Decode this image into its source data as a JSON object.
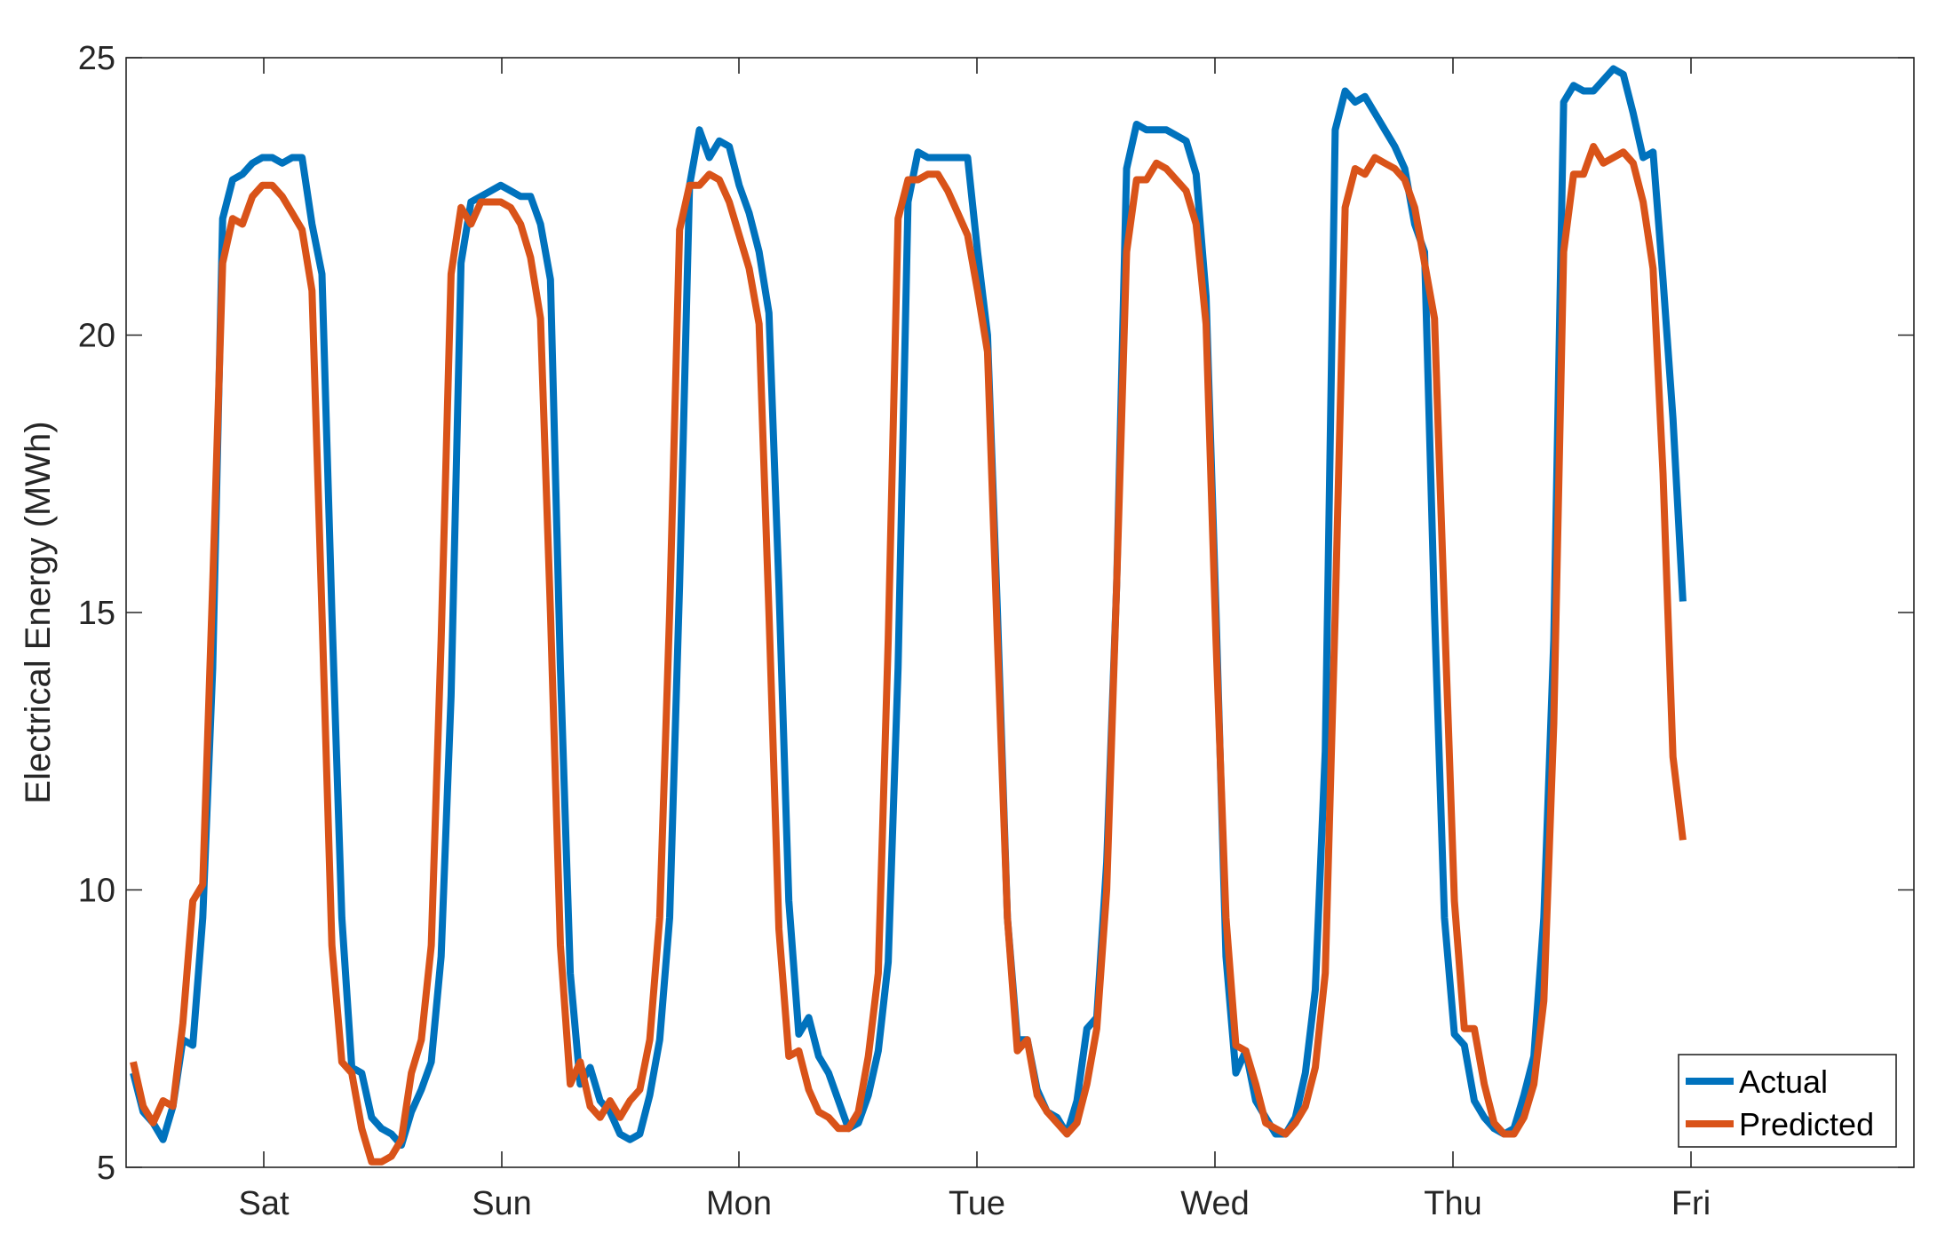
{
  "chart_data": {
    "type": "line",
    "ylabel": "Electrical Energy (MWh)",
    "ylim": [
      5,
      25
    ],
    "yticks": [
      5,
      10,
      15,
      20,
      25
    ],
    "xticks": [
      "Sat",
      "Sun",
      "Mon",
      "Tue",
      "Wed",
      "Thu",
      "Fri"
    ],
    "grid": false,
    "legend_position": "bottom-right",
    "series": [
      {
        "name": "Actual",
        "color": "#0072BD",
        "values": [
          6.7,
          6.0,
          5.8,
          5.5,
          6.1,
          7.3,
          7.2,
          9.5,
          14.0,
          22.1,
          22.8,
          22.9,
          23.1,
          23.2,
          23.2,
          23.1,
          23.2,
          23.2,
          22.0,
          21.1,
          15.0,
          9.5,
          6.8,
          6.7,
          5.9,
          5.7,
          5.6,
          5.4,
          6.0,
          6.4,
          6.9,
          8.8,
          13.5,
          21.3,
          22.4,
          22.5,
          22.6,
          22.7,
          22.6,
          22.5,
          22.5,
          22.0,
          21.0,
          14.0,
          8.5,
          6.5,
          6.8,
          6.2,
          6.0,
          5.6,
          5.5,
          5.6,
          6.3,
          7.3,
          9.5,
          15.5,
          22.7,
          23.7,
          23.2,
          23.5,
          23.4,
          22.7,
          22.2,
          21.5,
          20.4,
          15.5,
          9.8,
          7.4,
          7.7,
          7.0,
          6.7,
          6.2,
          5.7,
          5.8,
          6.3,
          7.1,
          8.7,
          14.0,
          22.4,
          23.3,
          23.2,
          23.2,
          23.2,
          23.2,
          23.2,
          21.5,
          20.0,
          15.0,
          9.5,
          7.3,
          7.3,
          6.4,
          6.0,
          5.9,
          5.6,
          6.2,
          7.5,
          7.7,
          10.5,
          15.5,
          23.0,
          23.8,
          23.7,
          23.7,
          23.7,
          23.6,
          23.5,
          22.9,
          20.7,
          15.0,
          8.8,
          6.7,
          7.1,
          6.2,
          5.9,
          5.6,
          5.6,
          5.9,
          6.7,
          8.2,
          12.5,
          23.7,
          24.4,
          24.2,
          24.3,
          24.0,
          23.7,
          23.4,
          23.0,
          22.0,
          21.5,
          15.0,
          9.5,
          7.4,
          7.2,
          6.2,
          5.9,
          5.7,
          5.6,
          5.7,
          6.3,
          7.0,
          9.5,
          14.5,
          24.2,
          24.5,
          24.4,
          24.4,
          24.6,
          24.8,
          24.7,
          24.0,
          23.2,
          23.3,
          21.0,
          18.5,
          15.2
        ]
      },
      {
        "name": "Predicted",
        "color": "#D95319",
        "values": [
          6.9,
          6.1,
          5.8,
          6.2,
          6.1,
          7.6,
          9.8,
          10.1,
          15.5,
          21.3,
          22.1,
          22.0,
          22.5,
          22.7,
          22.7,
          22.5,
          22.2,
          21.9,
          20.8,
          15.0,
          9.0,
          6.9,
          6.7,
          5.7,
          5.1,
          5.1,
          5.2,
          5.5,
          6.7,
          7.3,
          9.0,
          14.5,
          21.1,
          22.3,
          22.0,
          22.4,
          22.4,
          22.4,
          22.3,
          22.0,
          21.4,
          20.3,
          15.0,
          9.0,
          6.5,
          6.9,
          6.1,
          5.9,
          6.2,
          5.9,
          6.2,
          6.4,
          7.3,
          9.5,
          15.0,
          21.9,
          22.7,
          22.7,
          22.9,
          22.8,
          22.4,
          21.8,
          21.2,
          20.2,
          15.0,
          9.3,
          7.0,
          7.1,
          6.4,
          6.0,
          5.9,
          5.7,
          5.7,
          6.0,
          7.0,
          8.5,
          14.5,
          22.1,
          22.8,
          22.8,
          22.9,
          22.9,
          22.6,
          22.2,
          21.8,
          20.8,
          19.7,
          14.5,
          9.5,
          7.1,
          7.3,
          6.3,
          6.0,
          5.8,
          5.6,
          5.8,
          6.5,
          7.5,
          10.0,
          15.5,
          21.5,
          22.8,
          22.8,
          23.1,
          23.0,
          22.8,
          22.6,
          22.0,
          20.2,
          14.5,
          9.5,
          7.2,
          7.1,
          6.5,
          5.8,
          5.7,
          5.6,
          5.8,
          6.1,
          6.8,
          8.5,
          15.0,
          22.3,
          23.0,
          22.9,
          23.2,
          23.1,
          23.0,
          22.8,
          22.3,
          21.3,
          20.3,
          15.0,
          9.8,
          7.5,
          7.5,
          6.5,
          5.8,
          5.6,
          5.6,
          5.9,
          6.5,
          8.0,
          13.0,
          21.5,
          22.9,
          22.9,
          23.4,
          23.1,
          23.2,
          23.3,
          23.1,
          22.4,
          21.2,
          17.5,
          12.4,
          10.9
        ]
      }
    ]
  }
}
